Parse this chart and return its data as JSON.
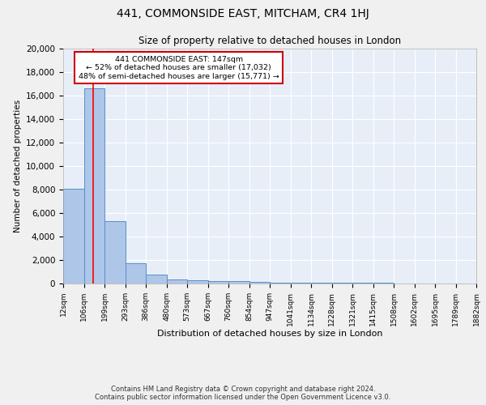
{
  "title": "441, COMMONSIDE EAST, MITCHAM, CR4 1HJ",
  "subtitle": "Size of property relative to detached houses in London",
  "xlabel": "Distribution of detached houses by size in London",
  "ylabel": "Number of detached properties",
  "bin_edges": [
    12,
    106,
    199,
    293,
    386,
    480,
    573,
    667,
    760,
    854,
    947,
    1041,
    1134,
    1228,
    1321,
    1415,
    1508,
    1602,
    1695,
    1789,
    1882
  ],
  "bin_heights": [
    8100,
    16600,
    5300,
    1750,
    750,
    350,
    250,
    200,
    200,
    150,
    100,
    80,
    60,
    50,
    40,
    35,
    30,
    25,
    20,
    15
  ],
  "bar_color": "#aec6e8",
  "bar_edge_color": "#5590c8",
  "bg_color": "#e8eef8",
  "grid_color": "#ffffff",
  "red_line_x": 147,
  "annotation_title": "441 COMMONSIDE EAST: 147sqm",
  "annotation_line1": "← 52% of detached houses are smaller (17,032)",
  "annotation_line2": "48% of semi-detached houses are larger (15,771) →",
  "annotation_box_color": "#cc0000",
  "ylim": [
    0,
    20000
  ],
  "yticks": [
    0,
    2000,
    4000,
    6000,
    8000,
    10000,
    12000,
    14000,
    16000,
    18000,
    20000
  ],
  "footer_line1": "Contains HM Land Registry data © Crown copyright and database right 2024.",
  "footer_line2": "Contains public sector information licensed under the Open Government Licence v3.0."
}
